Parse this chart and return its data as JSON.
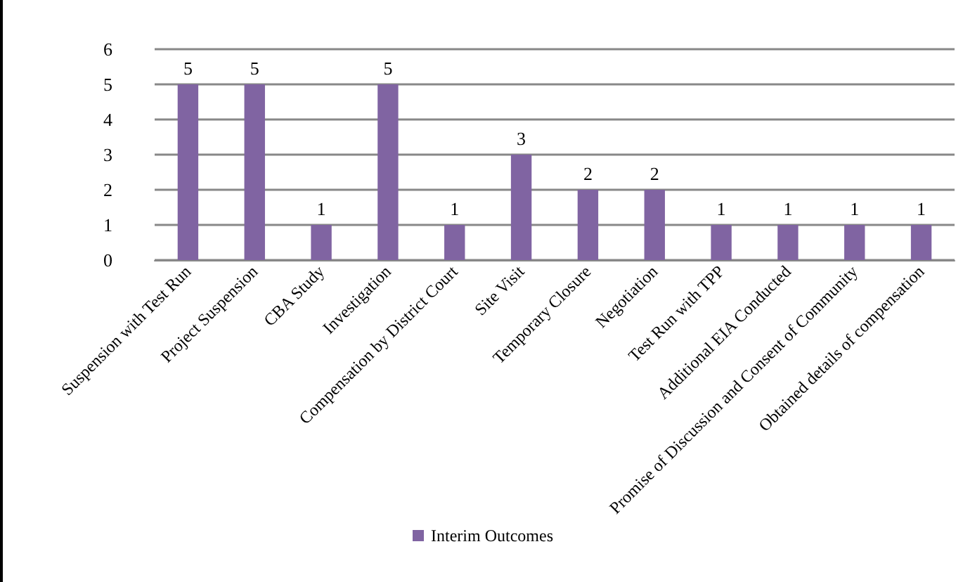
{
  "chart_data": {
    "type": "bar",
    "categories": [
      "Suspension with Test Run",
      "Project Suspension",
      "CBA Study",
      "Investigation",
      "Compensation by District Court",
      "Site Visit",
      "Temporary Closure",
      "Negotiation",
      "Test Run with TPP",
      "Additional EIA Conducted",
      "Promise of Discussion and Consent of Community",
      "Obtained details of compensation"
    ],
    "series": [
      {
        "name": "Interim Outcomes",
        "color": "#8064a2",
        "values": [
          5,
          5,
          1,
          5,
          1,
          3,
          2,
          2,
          1,
          1,
          1,
          1
        ]
      }
    ],
    "ylim": [
      0,
      6
    ],
    "yticks": [
      0,
      1,
      2,
      3,
      4,
      5,
      6
    ],
    "grid": "y",
    "legend": "bottom",
    "data_labels": true
  }
}
